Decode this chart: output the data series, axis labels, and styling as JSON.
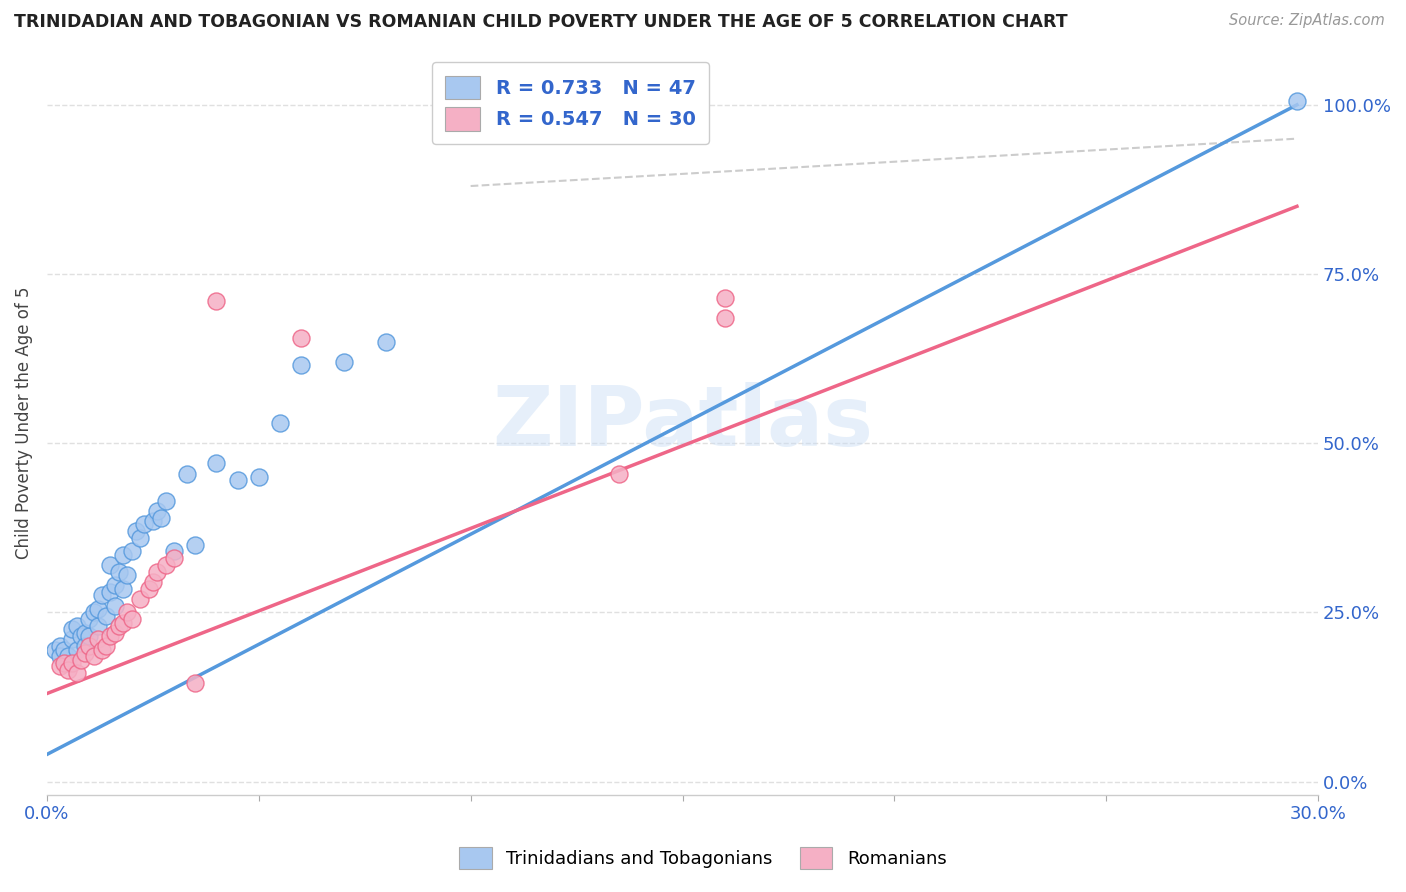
{
  "title": "TRINIDADIAN AND TOBAGONIAN VS ROMANIAN CHILD POVERTY UNDER THE AGE OF 5 CORRELATION CHART",
  "source": "Source: ZipAtlas.com",
  "ylabel": "Child Poverty Under the Age of 5",
  "xlim": [
    0.0,
    0.3
  ],
  "ylim": [
    -0.02,
    1.08
  ],
  "right_yticks": [
    0.0,
    0.25,
    0.5,
    0.75,
    1.0
  ],
  "right_yticklabels": [
    "0.0%",
    "25.0%",
    "50.0%",
    "75.0%",
    "100.0%"
  ],
  "xticks": [
    0.0,
    0.05,
    0.1,
    0.15,
    0.2,
    0.25,
    0.3
  ],
  "xticklabels": [
    "0.0%",
    "",
    "",
    "",
    "",
    "",
    "30.0%"
  ],
  "background_color": "#ffffff",
  "grid_color": "#e0e0e0",
  "watermark_text": "ZIPatlas",
  "legend_R1": "R = 0.733",
  "legend_N1": "N = 47",
  "legend_R2": "R = 0.547",
  "legend_N2": "N = 30",
  "color_blue": "#a8c8f0",
  "color_pink": "#f5b0c5",
  "line_blue": "#5599dd",
  "line_pink": "#ee6688",
  "line_gray": "#cccccc",
  "blue_line_x0": 0.0,
  "blue_line_y0": 0.04,
  "blue_line_x1": 0.295,
  "blue_line_y1": 1.0,
  "pink_line_x0": 0.0,
  "pink_line_y0": 0.13,
  "pink_line_x1": 0.295,
  "pink_line_y1": 0.85,
  "gray_line_x0": 0.1,
  "gray_line_y0": 0.88,
  "gray_line_x1": 0.295,
  "gray_line_y1": 0.95,
  "trinidadian_x": [
    0.002,
    0.003,
    0.003,
    0.004,
    0.005,
    0.005,
    0.006,
    0.006,
    0.007,
    0.007,
    0.008,
    0.009,
    0.009,
    0.01,
    0.01,
    0.011,
    0.012,
    0.012,
    0.013,
    0.014,
    0.015,
    0.015,
    0.016,
    0.016,
    0.017,
    0.018,
    0.018,
    0.019,
    0.02,
    0.021,
    0.022,
    0.023,
    0.025,
    0.026,
    0.027,
    0.028,
    0.03,
    0.033,
    0.035,
    0.04,
    0.045,
    0.05,
    0.055,
    0.06,
    0.07,
    0.08,
    0.295
  ],
  "trinidadian_y": [
    0.195,
    0.2,
    0.185,
    0.195,
    0.175,
    0.185,
    0.21,
    0.225,
    0.195,
    0.23,
    0.215,
    0.22,
    0.2,
    0.215,
    0.24,
    0.25,
    0.23,
    0.255,
    0.275,
    0.245,
    0.28,
    0.32,
    0.26,
    0.29,
    0.31,
    0.285,
    0.335,
    0.305,
    0.34,
    0.37,
    0.36,
    0.38,
    0.385,
    0.4,
    0.39,
    0.415,
    0.34,
    0.455,
    0.35,
    0.47,
    0.445,
    0.45,
    0.53,
    0.615,
    0.62,
    0.65,
    1.005
  ],
  "romanian_x": [
    0.003,
    0.004,
    0.005,
    0.006,
    0.007,
    0.008,
    0.009,
    0.01,
    0.011,
    0.012,
    0.013,
    0.014,
    0.015,
    0.016,
    0.017,
    0.018,
    0.019,
    0.02,
    0.022,
    0.024,
    0.025,
    0.026,
    0.028,
    0.03,
    0.035,
    0.04,
    0.06,
    0.135,
    0.16,
    0.16
  ],
  "romanian_y": [
    0.17,
    0.175,
    0.165,
    0.175,
    0.16,
    0.18,
    0.19,
    0.2,
    0.185,
    0.21,
    0.195,
    0.2,
    0.215,
    0.22,
    0.23,
    0.235,
    0.25,
    0.24,
    0.27,
    0.285,
    0.295,
    0.31,
    0.32,
    0.33,
    0.145,
    0.71,
    0.655,
    0.455,
    0.685,
    0.715
  ]
}
